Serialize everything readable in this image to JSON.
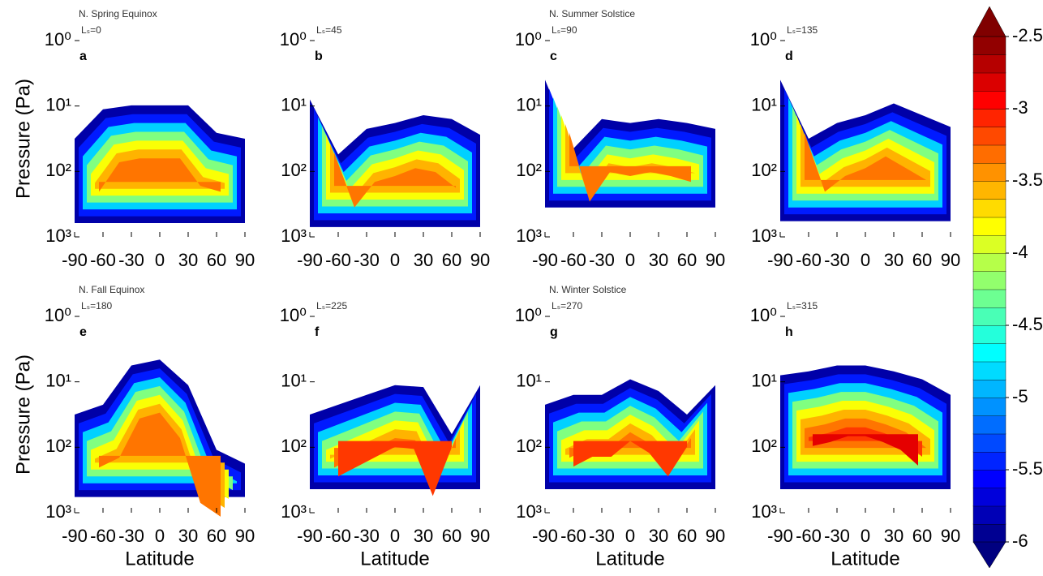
{
  "chart_data": [
    {
      "type": "contour",
      "title": "N. Spring Equinox",
      "subtitle": "Lₛ=0",
      "panel_label": "a",
      "ylabel": "Pressure (Pa)",
      "xlim": [
        -90,
        90
      ],
      "xticks": [
        -90,
        -60,
        -30,
        0,
        30,
        60,
        90
      ],
      "ylim": [
        1,
        1000
      ],
      "yticks": [
        {
          "value": 1,
          "label": "10⁰"
        },
        {
          "value": 10,
          "label": "10¹"
        },
        {
          "value": 100,
          "label": "10²"
        },
        {
          "value": 1000,
          "label": "10³"
        }
      ],
      "log_y": true
    },
    {
      "type": "contour",
      "subtitle": "Lₛ=45",
      "panel_label": "b",
      "xlim": [
        -90,
        90
      ],
      "xticks": [
        -90,
        -60,
        -30,
        0,
        30,
        60,
        90
      ],
      "ylim": [
        1,
        1000
      ],
      "yticks": [
        {
          "value": 1,
          "label": "10⁰"
        },
        {
          "value": 10,
          "label": "10¹"
        },
        {
          "value": 100,
          "label": "10²"
        },
        {
          "value": 1000,
          "label": "10³"
        }
      ],
      "log_y": true
    },
    {
      "type": "contour",
      "title": "N. Summer Solstice",
      "subtitle": "Lₛ=90",
      "panel_label": "c",
      "xlim": [
        -90,
        90
      ],
      "xticks": [
        -90,
        -60,
        -30,
        0,
        30,
        60,
        90
      ],
      "ylim": [
        1,
        1000
      ],
      "yticks": [
        {
          "value": 1,
          "label": "10⁰"
        },
        {
          "value": 10,
          "label": "10¹"
        },
        {
          "value": 100,
          "label": "10²"
        },
        {
          "value": 1000,
          "label": "10³"
        }
      ],
      "log_y": true
    },
    {
      "type": "contour",
      "subtitle": "Lₛ=135",
      "panel_label": "d",
      "xlim": [
        -90,
        90
      ],
      "xticks": [
        -90,
        -60,
        -30,
        0,
        30,
        60,
        90
      ],
      "ylim": [
        1,
        1000
      ],
      "yticks": [
        {
          "value": 1,
          "label": "10⁰"
        },
        {
          "value": 10,
          "label": "10¹"
        },
        {
          "value": 100,
          "label": "10²"
        },
        {
          "value": 1000,
          "label": "10³"
        }
      ],
      "log_y": true
    },
    {
      "type": "contour",
      "title": "N. Fall Equinox",
      "subtitle": "Lₛ=180",
      "panel_label": "e",
      "ylabel": "Pressure (Pa)",
      "xlabel": "Latitude",
      "xlim": [
        -90,
        90
      ],
      "xticks": [
        -90,
        -60,
        -30,
        0,
        30,
        60,
        90
      ],
      "ylim": [
        1,
        1000
      ],
      "yticks": [
        {
          "value": 1,
          "label": "10⁰"
        },
        {
          "value": 10,
          "label": "10¹"
        },
        {
          "value": 100,
          "label": "10²"
        },
        {
          "value": 1000,
          "label": "10³"
        }
      ],
      "log_y": true
    },
    {
      "type": "contour",
      "subtitle": "Lₛ=225",
      "panel_label": "f",
      "xlabel": "Latitude",
      "xlim": [
        -90,
        90
      ],
      "xticks": [
        -90,
        -60,
        -30,
        0,
        30,
        60,
        90
      ],
      "ylim": [
        1,
        1000
      ],
      "yticks": [
        {
          "value": 1,
          "label": "10⁰"
        },
        {
          "value": 10,
          "label": "10¹"
        },
        {
          "value": 100,
          "label": "10²"
        },
        {
          "value": 1000,
          "label": "10³"
        }
      ],
      "log_y": true
    },
    {
      "type": "contour",
      "title": "N. Winter Solstice",
      "subtitle": "Lₛ=270",
      "panel_label": "g",
      "xlabel": "Latitude",
      "xlim": [
        -90,
        90
      ],
      "xticks": [
        -90,
        -60,
        -30,
        0,
        30,
        60,
        90
      ],
      "ylim": [
        1,
        1000
      ],
      "yticks": [
        {
          "value": 1,
          "label": "10⁰"
        },
        {
          "value": 10,
          "label": "10¹"
        },
        {
          "value": 100,
          "label": "10²"
        },
        {
          "value": 1000,
          "label": "10³"
        }
      ],
      "log_y": true
    },
    {
      "type": "contour",
      "subtitle": "Lₛ=315",
      "panel_label": "h",
      "xlabel": "Latitude",
      "xlim": [
        -90,
        90
      ],
      "xticks": [
        -90,
        -60,
        -30,
        0,
        30,
        60,
        90
      ],
      "ylim": [
        1,
        1000
      ],
      "yticks": [
        {
          "value": 1,
          "label": "10⁰"
        },
        {
          "value": 10,
          "label": "10¹"
        },
        {
          "value": 100,
          "label": "10²"
        },
        {
          "value": 1000,
          "label": "10³"
        }
      ],
      "log_y": true
    }
  ],
  "colorbar": {
    "lim": [
      -6,
      -2.5
    ],
    "ticks": [
      -6,
      -5.5,
      -5,
      -4.5,
      -4,
      -3.5,
      -3,
      -2.5
    ],
    "colormap": "jet"
  }
}
